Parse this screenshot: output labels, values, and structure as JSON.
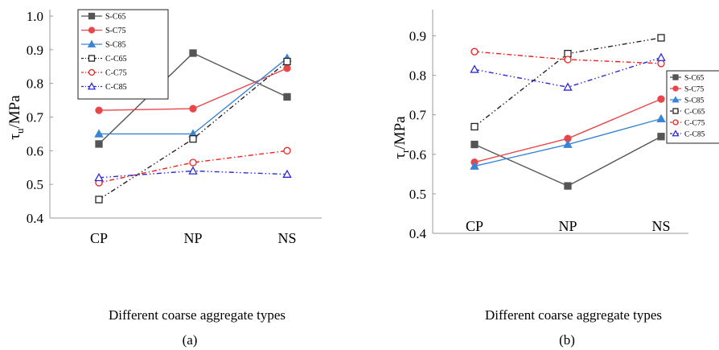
{
  "subcaptions": [
    "(a)",
    "(b)"
  ],
  "chart_data": [
    {
      "type": "line",
      "panel_label": "(a)",
      "ylabel_base": "τ",
      "ylabel_sub": "u",
      "ylabel_unit": "/MPa",
      "xlabel": "Different coarse aggregate types",
      "categories": [
        "CP",
        "NP",
        "NS"
      ],
      "ylim": [
        0.4,
        1.0
      ],
      "yticks": [
        "0.4",
        "0.5",
        "0.6",
        "0.7",
        "0.8",
        "0.9",
        "1.0"
      ],
      "legend_position": "top-left",
      "series": [
        {
          "name": "S-C65",
          "values": [
            0.62,
            0.89,
            0.76
          ],
          "color": "#555555",
          "marker": "filled-square",
          "dash": "solid"
        },
        {
          "name": "S-C75",
          "values": [
            0.72,
            0.725,
            0.845
          ],
          "color": "#e8474a",
          "marker": "filled-circle",
          "dash": "solid"
        },
        {
          "name": "S-C85",
          "values": [
            0.65,
            0.65,
            0.875
          ],
          "color": "#3a84d6",
          "marker": "filled-triangle",
          "dash": "solid"
        },
        {
          "name": "C-C65",
          "values": [
            0.455,
            0.635,
            0.865
          ],
          "color": "#222222",
          "marker": "open-square",
          "dash": "dashdotdot"
        },
        {
          "name": "C-C75",
          "values": [
            0.505,
            0.565,
            0.6
          ],
          "color": "#f02020",
          "marker": "open-circle",
          "dash": "dashdot"
        },
        {
          "name": "C-C85",
          "values": [
            0.52,
            0.54,
            0.53
          ],
          "color": "#2a2ad8",
          "marker": "open-triangle",
          "dash": "dashdotdot"
        }
      ]
    },
    {
      "type": "line",
      "panel_label": "(b)",
      "ylabel_base": "τ",
      "ylabel_sub": "r",
      "ylabel_unit": "/MPa",
      "xlabel": "Different coarse aggregate types",
      "categories": [
        "CP",
        "NP",
        "NS"
      ],
      "ylim": [
        0.4,
        0.95
      ],
      "yticks": [
        "0.4",
        "0.5",
        "0.6",
        "0.7",
        "0.8",
        "0.9"
      ],
      "legend_position": "right",
      "series": [
        {
          "name": "S-C65",
          "values": [
            0.625,
            0.52,
            0.645
          ],
          "color": "#555555",
          "marker": "filled-square",
          "dash": "solid"
        },
        {
          "name": "S-C75",
          "values": [
            0.58,
            0.64,
            0.74
          ],
          "color": "#e8474a",
          "marker": "filled-circle",
          "dash": "solid"
        },
        {
          "name": "S-C85",
          "values": [
            0.57,
            0.625,
            0.69
          ],
          "color": "#3a84d6",
          "marker": "filled-triangle",
          "dash": "solid"
        },
        {
          "name": "C-C65",
          "values": [
            0.67,
            0.855,
            0.895
          ],
          "color": "#222222",
          "marker": "open-square",
          "dash": "dashdotdot"
        },
        {
          "name": "C-C75",
          "values": [
            0.86,
            0.84,
            0.83
          ],
          "color": "#f02020",
          "marker": "open-circle",
          "dash": "dashdot"
        },
        {
          "name": "C-C85",
          "values": [
            0.815,
            0.77,
            0.845
          ],
          "color": "#2a2ad8",
          "marker": "open-triangle",
          "dash": "dashdotdot"
        }
      ]
    }
  ]
}
